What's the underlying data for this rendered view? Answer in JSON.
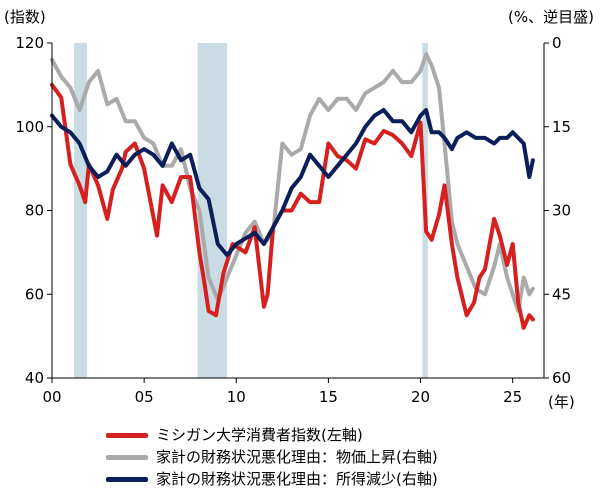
{
  "chart_data": {
    "type": "line",
    "title": "",
    "left_axis": {
      "label": "(指数)",
      "ylim": [
        40,
        120
      ],
      "ticks": [
        40,
        60,
        80,
        100,
        120
      ]
    },
    "right_axis": {
      "label": "(%、逆目盛)",
      "inverted": true,
      "ylim": [
        60,
        0
      ],
      "ticks": [
        60,
        45,
        30,
        15,
        0
      ],
      "tick_labels": [
        "60",
        "45",
        "30",
        "15",
        "0"
      ]
    },
    "x_axis": {
      "label": "(年)",
      "xlim": [
        2000,
        2026.7
      ],
      "ticks": [
        2000,
        2005,
        2010,
        2015,
        2020,
        2025
      ],
      "tick_labels": [
        "00",
        "05",
        "10",
        "15",
        "20",
        "25"
      ]
    },
    "recessions": [
      [
        2001.2,
        2001.9
      ],
      [
        2007.9,
        2009.5
      ],
      [
        2020.1,
        2020.4
      ]
    ],
    "grid": false,
    "legend_position": "bottom",
    "series": [
      {
        "name": "ミシガン大学消費者指数(左軸)",
        "axis": "left",
        "color": "#d62020",
        "x": [
          2000,
          2000.5,
          2001,
          2001.5,
          2001.8,
          2002,
          2002.5,
          2003,
          2003.3,
          2003.8,
          2004,
          2004.5,
          2005,
          2005.7,
          2006,
          2006.5,
          2007,
          2007.5,
          2008,
          2008.3,
          2008.5,
          2008.9,
          2009.3,
          2009.8,
          2010.5,
          2011,
          2011.5,
          2011.7,
          2012,
          2012.5,
          2013,
          2013.5,
          2014,
          2014.5,
          2015,
          2015.5,
          2016,
          2016.5,
          2017,
          2017.5,
          2018,
          2018.5,
          2019,
          2019.5,
          2020,
          2020.3,
          2020.6,
          2021,
          2021.3,
          2021.7,
          2022,
          2022.5,
          2022.9,
          2023.2,
          2023.5,
          2024,
          2024.3,
          2024.7,
          2025,
          2025.3,
          2025.6,
          2025.9,
          2026.1
        ],
        "values": [
          110,
          107,
          91,
          86,
          82,
          91,
          86,
          78,
          85,
          90,
          94,
          96,
          90,
          74,
          86,
          82,
          88,
          88,
          70,
          62,
          56,
          55,
          65,
          72,
          70,
          76,
          57,
          60,
          76,
          80,
          80,
          84,
          82,
          82,
          96,
          93,
          92,
          90,
          97,
          96,
          99,
          98,
          96,
          93,
          101,
          75,
          73,
          79,
          86,
          72,
          64,
          55,
          58,
          64,
          66,
          78,
          74,
          67,
          72,
          58,
          52,
          55,
          54
        ]
      },
      {
        "name": "家計の財務状況悪化理由：物価上昇(右軸)",
        "axis": "right",
        "color": "#aaaaaa",
        "x": [
          2000,
          2000.5,
          2001,
          2001.5,
          2002,
          2002.5,
          2003,
          2003.5,
          2004,
          2004.5,
          2005,
          2005.5,
          2006,
          2006.5,
          2007,
          2007.5,
          2008,
          2008.5,
          2009,
          2009.5,
          2010,
          2010.5,
          2011,
          2011.5,
          2012,
          2012.5,
          2013,
          2013.5,
          2014,
          2014.5,
          2015,
          2015.5,
          2016,
          2016.5,
          2017,
          2017.5,
          2018,
          2018.5,
          2019,
          2019.5,
          2020,
          2020.3,
          2020.6,
          2021,
          2021.3,
          2021.7,
          2022,
          2022.5,
          2023,
          2023.5,
          2024,
          2024.3,
          2024.7,
          2025,
          2025.3,
          2025.6,
          2025.9,
          2026.1
        ],
        "values": [
          3,
          6,
          8,
          12,
          7,
          5,
          11,
          10,
          14,
          14,
          17,
          18,
          22,
          22,
          19,
          26,
          30,
          42,
          46,
          42,
          38,
          34,
          32,
          36,
          34,
          18,
          20,
          19,
          13,
          10,
          12,
          10,
          10,
          12,
          9,
          8,
          7,
          5,
          7,
          7,
          5,
          2,
          4,
          8,
          18,
          32,
          36,
          40,
          44,
          45,
          40,
          36,
          42,
          45,
          48,
          42,
          45,
          44
        ]
      },
      {
        "name": "家計の財務状況悪化理由：所得減少(右軸)",
        "axis": "right",
        "color": "#0a1e5a",
        "x": [
          2000,
          2000.5,
          2001,
          2001.5,
          2002,
          2002.5,
          2003,
          2003.5,
          2004,
          2004.5,
          2005,
          2005.5,
          2006,
          2006.5,
          2007,
          2007.5,
          2008,
          2008.5,
          2009,
          2009.5,
          2010,
          2010.5,
          2011,
          2011.5,
          2012,
          2012.5,
          2013,
          2013.5,
          2014,
          2014.5,
          2015,
          2015.5,
          2016,
          2016.5,
          2017,
          2017.5,
          2018,
          2018.5,
          2019,
          2019.5,
          2020,
          2020.3,
          2020.6,
          2021,
          2021.3,
          2021.7,
          2022,
          2022.5,
          2023,
          2023.5,
          2024,
          2024.3,
          2024.7,
          2025,
          2025.3,
          2025.6,
          2025.9,
          2026.1
        ],
        "values": [
          13,
          15,
          16,
          18,
          22,
          24,
          23,
          20,
          22,
          20,
          19,
          20,
          22,
          18,
          21,
          20,
          26,
          28,
          36,
          38,
          36,
          35,
          34,
          36,
          33,
          30,
          26,
          24,
          20,
          22,
          24,
          22,
          20,
          18,
          15,
          13,
          12,
          14,
          14,
          16,
          13,
          12,
          16,
          16,
          17,
          19,
          17,
          16,
          17,
          17,
          18,
          17,
          17,
          16,
          17,
          18,
          24,
          21
        ]
      }
    ]
  }
}
